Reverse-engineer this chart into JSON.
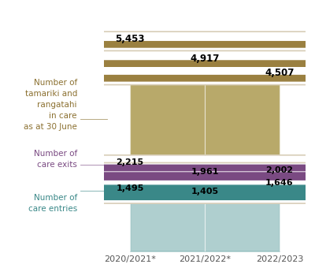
{
  "years": [
    "2020/2021*",
    "2021/2022*",
    "2022/2023"
  ],
  "in_care": [
    5453,
    4917,
    4507
  ],
  "care_exits": [
    2215,
    1961,
    2002
  ],
  "care_entries": [
    1495,
    1405,
    1646
  ],
  "color_in_care": "#b8a96a",
  "color_exits": "#b08ab0",
  "color_entries": "#7ab0b0",
  "color_dot_in_care": "#9a8040",
  "color_dot_exits": "#7a4a82",
  "color_dot_entries": "#3a8888",
  "color_label_in_care": "#8b7030",
  "color_label_exits": "#7a4a82",
  "color_label_entries": "#3a8888",
  "label_in_care": "Number of\ntamariki and\nrangatahi\nin care\nas at 30 June",
  "label_exits": "Number of\ncare exits",
  "label_entries": "Number of\ncare entries",
  "background_color": "#ffffff",
  "ymax": 6200,
  "ymin": -200
}
